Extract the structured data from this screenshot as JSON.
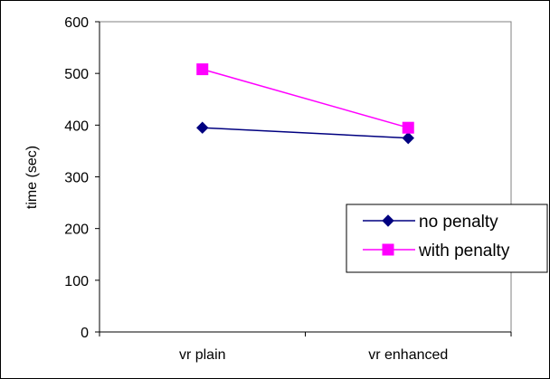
{
  "chart_data": {
    "type": "line",
    "title": "",
    "xlabel": "",
    "ylabel": "time (sec)",
    "categories": [
      "vr plain",
      "vr enhanced"
    ],
    "ylim": [
      0,
      600
    ],
    "yticks": [
      "0",
      "100",
      "200",
      "300",
      "400",
      "500",
      "600"
    ],
    "grid": false,
    "legend_position": "right",
    "series": [
      {
        "name": "no penalty",
        "values": [
          395,
          375
        ],
        "color": "#000080",
        "marker": "diamond"
      },
      {
        "name": "with penalty",
        "values": [
          508,
          395
        ],
        "color": "#FF00FF",
        "marker": "square"
      }
    ]
  }
}
